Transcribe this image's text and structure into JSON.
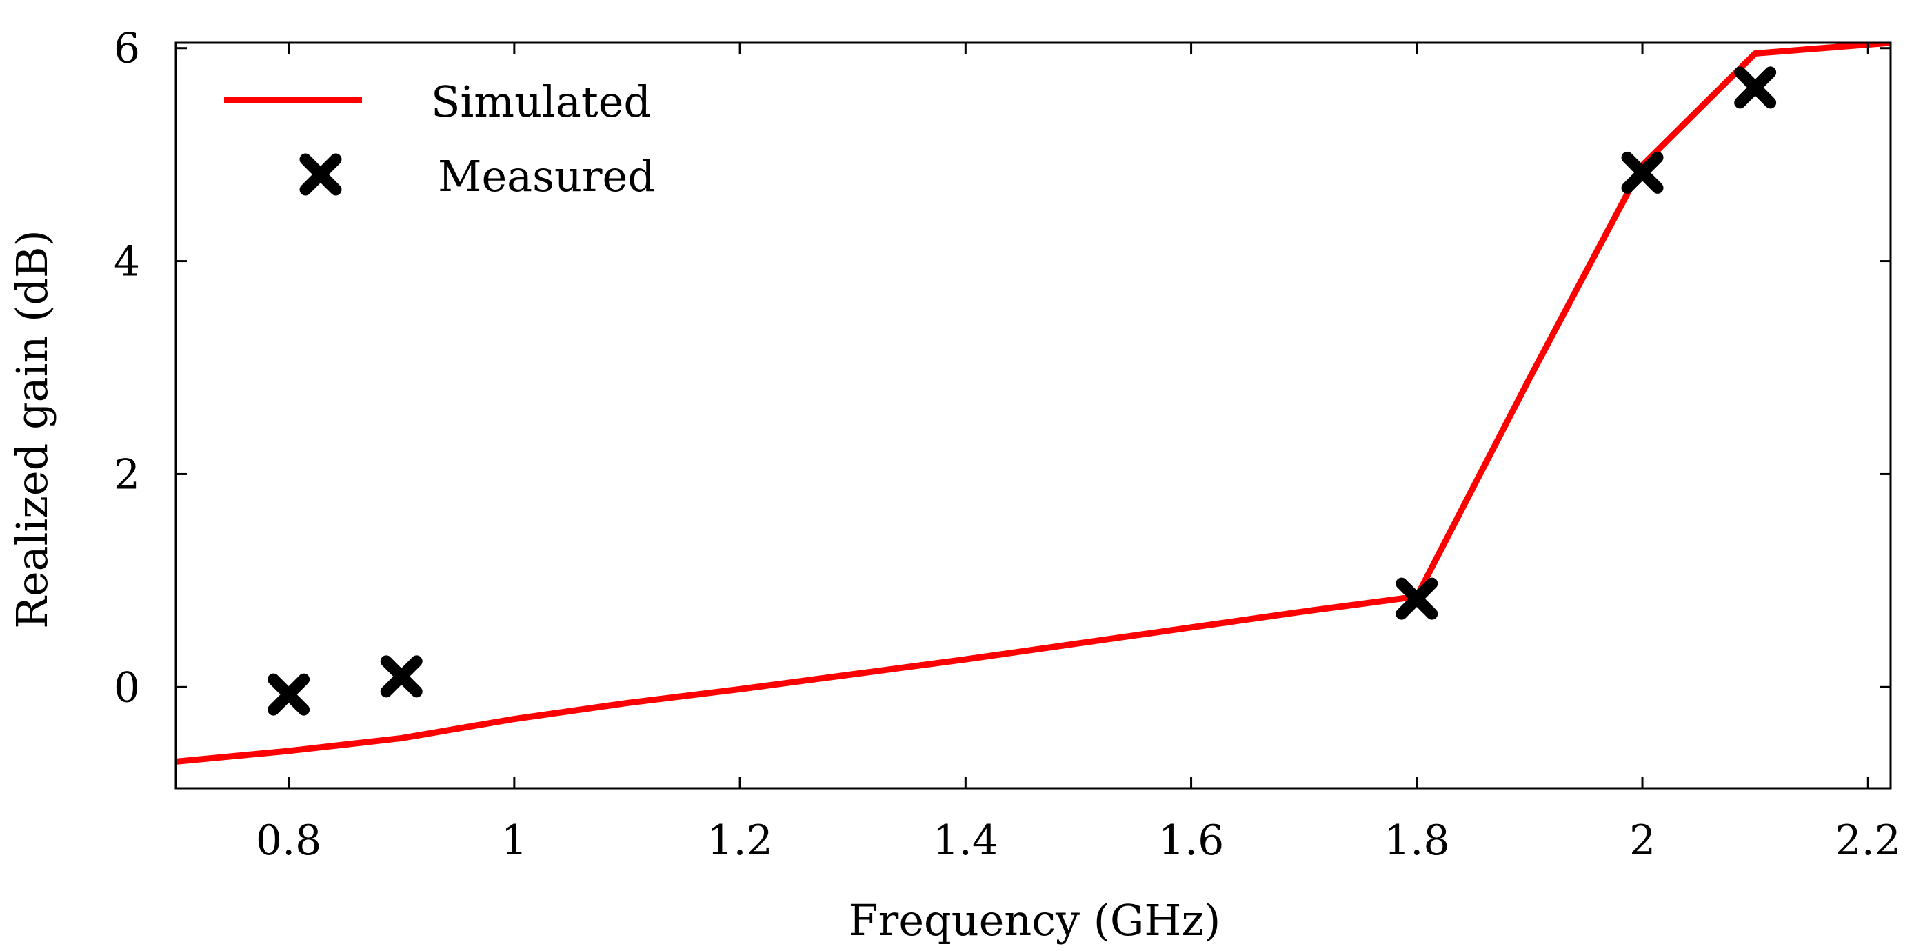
{
  "chart_data": {
    "type": "line",
    "title": "",
    "xlabel": "Frequency (GHz)",
    "ylabel": "Realized gain (dB)",
    "xlim": [
      0.7,
      2.22
    ],
    "ylim": [
      -0.95,
      6.05
    ],
    "xticks": [
      {
        "value": 0.8,
        "label": "0.8"
      },
      {
        "value": 1.0,
        "label": "1"
      },
      {
        "value": 1.2,
        "label": "1.2"
      },
      {
        "value": 1.4,
        "label": "1.4"
      },
      {
        "value": 1.6,
        "label": "1.6"
      },
      {
        "value": 1.8,
        "label": "1.8"
      },
      {
        "value": 2.0,
        "label": "2"
      },
      {
        "value": 2.2,
        "label": "2.2"
      }
    ],
    "yticks": [
      {
        "value": 0,
        "label": "0"
      },
      {
        "value": 2,
        "label": "2"
      },
      {
        "value": 4,
        "label": "4"
      },
      {
        "value": 6,
        "label": "6"
      }
    ],
    "grid": false,
    "legend_position": "top-left",
    "series": [
      {
        "name": "Simulated",
        "kind": "line",
        "color": "#ff0000",
        "x": [
          0.7,
          0.8,
          0.9,
          1.0,
          1.1,
          1.2,
          1.3,
          1.4,
          1.5,
          1.6,
          1.7,
          1.8,
          1.9,
          2.0,
          2.1,
          2.22
        ],
        "y": [
          -0.7,
          -0.6,
          -0.48,
          -0.3,
          -0.15,
          -0.02,
          0.12,
          0.26,
          0.41,
          0.56,
          0.71,
          0.85,
          2.9,
          4.9,
          5.95,
          6.05
        ]
      },
      {
        "name": "Measured",
        "kind": "scatter",
        "marker": "x",
        "color": "#000000",
        "x": [
          0.8,
          0.9,
          1.8,
          2.0,
          2.1
        ],
        "y": [
          -0.07,
          0.1,
          0.83,
          4.83,
          5.63
        ]
      }
    ]
  }
}
